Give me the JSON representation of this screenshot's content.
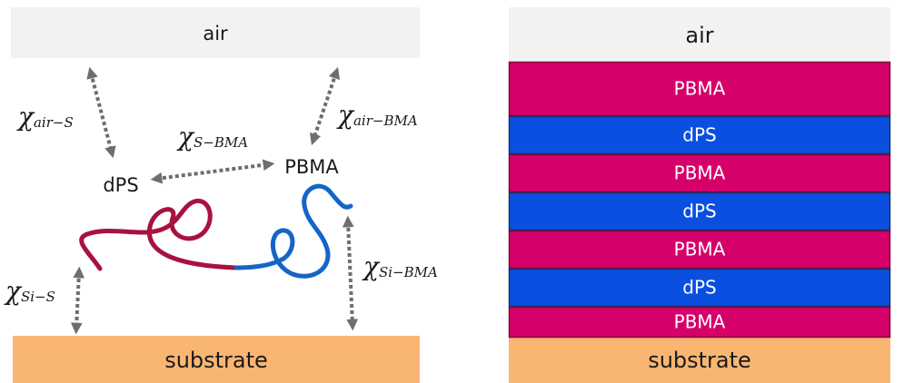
{
  "left": {
    "air": "air",
    "substrate": "substrate",
    "dps": "dPS",
    "pbma": "PBMA",
    "interactions": [
      {
        "symbol": "χ",
        "subscript": "air−S"
      },
      {
        "symbol": "χ",
        "subscript": "S−BMA"
      },
      {
        "symbol": "χ",
        "subscript": "air−BMA"
      },
      {
        "symbol": "χ",
        "subscript": "Si−S"
      },
      {
        "symbol": "χ",
        "subscript": "Si−BMA"
      }
    ]
  },
  "right": {
    "air": "air",
    "substrate": "substrate",
    "layers": [
      "PBMA",
      "dPS",
      "PBMA",
      "dPS",
      "PBMA",
      "dPS",
      "PBMA"
    ]
  }
}
